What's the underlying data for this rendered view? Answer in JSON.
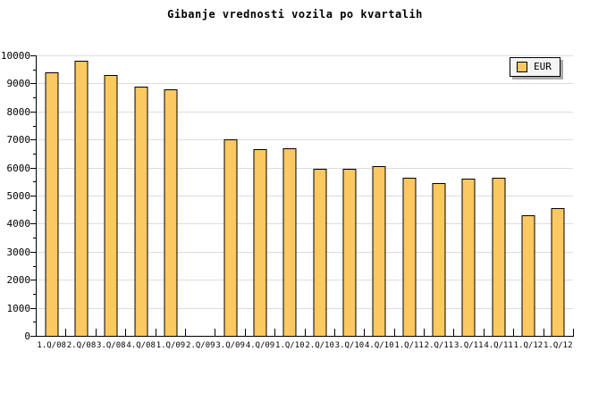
{
  "colors": {
    "bar_fill": "#FCC860",
    "bar_border": "#000000",
    "grid": "#DCDCDC",
    "axis": "#000000",
    "text": "#000000",
    "background": "#FFFFFF",
    "legend_bg": "#F4F4F4",
    "legend_border": "#000000",
    "legend_shadow": "#AAAAAA"
  },
  "chart_data": {
    "type": "bar",
    "title": "Gibanje vrednosti vozila po kvartalih",
    "categories": [
      "1.Q/08",
      "2.Q/08",
      "3.Q/08",
      "4.Q/08",
      "1.Q/09",
      "2.Q/09",
      "3.Q/09",
      "4.Q/09",
      "1.Q/10",
      "2.Q/10",
      "3.Q/10",
      "4.Q/10",
      "1.Q/11",
      "2.Q/11",
      "3.Q/11",
      "4.Q/11",
      "1.Q/12",
      "1.Q/12"
    ],
    "series": [
      {
        "name": "EUR",
        "values": [
          9400,
          9800,
          9300,
          8900,
          8800,
          null,
          7000,
          6650,
          6700,
          5950,
          5950,
          6050,
          5650,
          5450,
          5600,
          5650,
          4300,
          4550
        ]
      }
    ],
    "xlabel": "",
    "ylabel": "",
    "ylim": [
      0,
      10000
    ],
    "y_tick_major": 1000,
    "y_tick_minor": 500,
    "y_tick_labels": [
      "0",
      "1000",
      "2000",
      "3000",
      "4000",
      "5000",
      "6000",
      "7000",
      "8000",
      "9000",
      "10000"
    ],
    "grid": "horizontal-major",
    "legend_position": "top-right"
  }
}
